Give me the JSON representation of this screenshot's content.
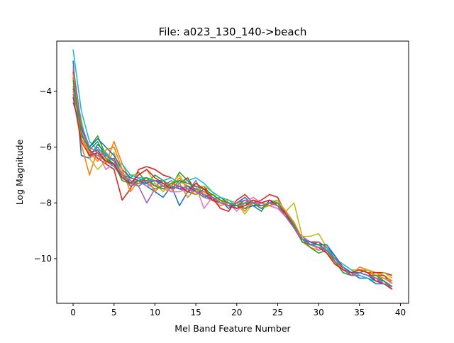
{
  "chart_data": {
    "type": "line",
    "title": "File: a023_130_140->beach",
    "xlabel": "Mel Band Feature Number",
    "ylabel": "Log Magnitude",
    "xlim": [
      -2,
      41
    ],
    "ylim": [
      -11.6,
      -2.2
    ],
    "xticks": [
      0,
      5,
      10,
      15,
      20,
      25,
      30,
      35,
      40
    ],
    "yticks": [
      -10,
      -8,
      -6,
      -4
    ],
    "ytick_labels": [
      "−10",
      "−8",
      "−6",
      "−4"
    ],
    "grid": false,
    "legend": "none",
    "x": [
      0,
      1,
      2,
      3,
      4,
      5,
      6,
      7,
      8,
      9,
      10,
      11,
      12,
      13,
      14,
      15,
      16,
      17,
      18,
      19,
      20,
      21,
      22,
      23,
      24,
      25,
      26,
      27,
      28,
      29,
      30,
      31,
      32,
      33,
      34,
      35,
      36,
      37,
      38,
      39
    ],
    "series": [
      {
        "color": "#1f77b4",
        "values": [
          -2.9,
          -6.3,
          -6.4,
          -5.9,
          -6.2,
          -6.5,
          -6.9,
          -7.3,
          -7.2,
          -7.4,
          -7.6,
          -7.8,
          -7.4,
          -8.1,
          -7.6,
          -7.7,
          -7.5,
          -7.7,
          -7.9,
          -8.2,
          -8.0,
          -7.8,
          -8.1,
          -8.3,
          -7.9,
          -8.0,
          -8.3,
          -8.8,
          -9.3,
          -9.5,
          -9.6,
          -9.6,
          -9.9,
          -10.4,
          -10.5,
          -10.7,
          -10.7,
          -10.9,
          -10.9,
          -11.0
        ]
      },
      {
        "color": "#ff7f0e",
        "values": [
          -3.2,
          -5.9,
          -7.0,
          -6.1,
          -6.6,
          -5.8,
          -6.6,
          -7.2,
          -7.3,
          -7.1,
          -7.2,
          -7.4,
          -7.6,
          -7.3,
          -7.8,
          -7.5,
          -7.4,
          -7.9,
          -8.1,
          -8.0,
          -8.2,
          -8.0,
          -7.9,
          -8.1,
          -8.1,
          -8.2,
          -8.3,
          -8.8,
          -9.4,
          -9.6,
          -9.7,
          -9.6,
          -10.0,
          -10.3,
          -10.6,
          -10.3,
          -10.4,
          -10.5,
          -10.6,
          -10.8
        ]
      },
      {
        "color": "#2ca02c",
        "values": [
          -3.5,
          -5.6,
          -6.0,
          -5.6,
          -6.3,
          -6.5,
          -7.0,
          -7.1,
          -6.9,
          -7.3,
          -7.0,
          -7.2,
          -7.4,
          -6.9,
          -7.2,
          -7.6,
          -7.8,
          -7.7,
          -7.9,
          -8.0,
          -8.1,
          -8.2,
          -8.0,
          -8.2,
          -8.0,
          -7.9,
          -8.4,
          -8.9,
          -9.3,
          -9.6,
          -9.8,
          -9.7,
          -10.1,
          -10.5,
          -10.6,
          -10.5,
          -10.6,
          -10.7,
          -10.8,
          -11.1
        ]
      },
      {
        "color": "#d62728",
        "values": [
          -3.3,
          -5.3,
          -6.1,
          -6.4,
          -6.6,
          -6.8,
          -7.9,
          -7.5,
          -6.8,
          -6.7,
          -6.8,
          -7.0,
          -7.1,
          -7.3,
          -7.1,
          -7.6,
          -7.4,
          -7.8,
          -8.2,
          -8.3,
          -7.9,
          -7.7,
          -8.0,
          -7.9,
          -7.7,
          -7.8,
          -8.4,
          -8.7,
          -9.3,
          -9.4,
          -9.4,
          -9.6,
          -10.0,
          -10.3,
          -10.5,
          -10.4,
          -10.5,
          -10.5,
          -10.5,
          -10.6
        ]
      },
      {
        "color": "#9467bd",
        "values": [
          -3.8,
          -5.5,
          -6.3,
          -6.0,
          -6.4,
          -6.7,
          -7.1,
          -7.3,
          -7.4,
          -8.0,
          -7.5,
          -7.4,
          -7.2,
          -7.5,
          -7.6,
          -7.2,
          -7.8,
          -7.9,
          -8.0,
          -8.1,
          -8.2,
          -8.0,
          -8.1,
          -8.0,
          -7.9,
          -8.1,
          -8.4,
          -8.9,
          -9.4,
          -9.5,
          -9.4,
          -9.8,
          -10.2,
          -10.4,
          -10.6,
          -10.6,
          -10.7,
          -10.8,
          -10.9,
          -11.0
        ]
      },
      {
        "color": "#8c564b",
        "values": [
          -3.9,
          -5.1,
          -6.2,
          -6.1,
          -6.5,
          -6.4,
          -7.0,
          -7.4,
          -7.2,
          -7.2,
          -7.4,
          -7.2,
          -7.5,
          -7.2,
          -7.4,
          -7.5,
          -7.7,
          -7.9,
          -7.8,
          -8.0,
          -8.1,
          -7.9,
          -8.0,
          -8.1,
          -8.0,
          -8.1,
          -8.5,
          -8.8,
          -9.3,
          -9.5,
          -9.5,
          -9.7,
          -10.1,
          -10.3,
          -10.6,
          -10.5,
          -10.4,
          -10.6,
          -10.6,
          -10.9
        ]
      },
      {
        "color": "#e377c2",
        "values": [
          -4.0,
          -5.4,
          -6.4,
          -6.2,
          -6.8,
          -6.6,
          -6.9,
          -7.4,
          -7.1,
          -7.4,
          -7.3,
          -7.5,
          -7.6,
          -7.6,
          -7.5,
          -7.4,
          -8.2,
          -7.8,
          -8.0,
          -8.0,
          -8.3,
          -8.0,
          -7.8,
          -8.0,
          -8.1,
          -8.2,
          -8.5,
          -8.9,
          -9.2,
          -9.4,
          -9.7,
          -9.6,
          -10.1,
          -10.4,
          -10.5,
          -10.4,
          -10.5,
          -10.7,
          -10.7,
          -10.9
        ]
      },
      {
        "color": "#7f7f7f",
        "values": [
          -4.1,
          -5.2,
          -6.2,
          -6.3,
          -6.5,
          -6.7,
          -7.0,
          -7.4,
          -7.3,
          -7.3,
          -7.5,
          -7.4,
          -7.3,
          -7.4,
          -7.6,
          -7.5,
          -7.6,
          -7.8,
          -7.9,
          -8.0,
          -8.2,
          -8.1,
          -8.0,
          -8.1,
          -8.0,
          -8.1,
          -8.4,
          -8.9,
          -9.2,
          -9.5,
          -9.6,
          -9.7,
          -10.0,
          -10.3,
          -10.5,
          -10.5,
          -10.6,
          -10.7,
          -10.8,
          -11.0
        ]
      },
      {
        "color": "#bcbd22",
        "values": [
          -3.7,
          -5.0,
          -6.4,
          -6.8,
          -6.5,
          -6.2,
          -7.0,
          -7.0,
          -7.0,
          -6.8,
          -7.3,
          -7.6,
          -7.3,
          -7.0,
          -7.5,
          -7.6,
          -7.4,
          -7.6,
          -8.0,
          -7.9,
          -8.0,
          -8.4,
          -8.0,
          -8.2,
          -8.1,
          -7.9,
          -8.3,
          -8.0,
          -9.2,
          -9.2,
          -9.1,
          -9.6,
          -10.0,
          -10.2,
          -10.4,
          -10.4,
          -10.4,
          -10.6,
          -10.5,
          -10.7
        ]
      },
      {
        "color": "#17becf",
        "values": [
          -2.5,
          -4.7,
          -5.8,
          -6.1,
          -6.2,
          -6.7,
          -6.6,
          -7.0,
          -7.1,
          -7.1,
          -7.2,
          -7.2,
          -7.1,
          -7.3,
          -7.2,
          -7.1,
          -7.3,
          -7.6,
          -7.8,
          -7.9,
          -8.1,
          -8.0,
          -7.9,
          -8.0,
          -8.1,
          -8.0,
          -8.3,
          -8.8,
          -9.3,
          -9.5,
          -9.6,
          -9.6,
          -10.0,
          -10.2,
          -10.4,
          -10.6,
          -10.7,
          -10.8,
          -10.9,
          -11.0
        ]
      },
      {
        "color": "#1f77b4",
        "values": [
          -4.4,
          -5.3,
          -6.0,
          -5.7,
          -6.0,
          -6.3,
          -6.8,
          -7.1,
          -7.2,
          -7.3,
          -7.2,
          -7.3,
          -7.4,
          -7.5,
          -7.4,
          -7.6,
          -7.7,
          -7.8,
          -8.0,
          -8.1,
          -8.1,
          -8.2,
          -8.1,
          -8.1,
          -8.0,
          -8.1,
          -8.4,
          -8.8,
          -9.3,
          -9.4,
          -9.5,
          -9.5,
          -9.9,
          -10.3,
          -10.5,
          -10.5,
          -10.6,
          -10.8,
          -10.8,
          -11.0
        ]
      },
      {
        "color": "#ff7f0e",
        "values": [
          -3.4,
          -5.7,
          -6.2,
          -6.5,
          -6.1,
          -6.0,
          -6.8,
          -7.6,
          -7.2,
          -7.1,
          -7.6,
          -7.3,
          -7.4,
          -7.1,
          -7.5,
          -7.7,
          -7.6,
          -7.7,
          -7.9,
          -8.1,
          -8.0,
          -8.3,
          -7.9,
          -8.0,
          -8.1,
          -8.0,
          -8.3,
          -8.7,
          -9.3,
          -9.5,
          -9.6,
          -9.8,
          -10.1,
          -10.4,
          -10.5,
          -10.4,
          -10.5,
          -10.6,
          -10.7,
          -10.8
        ]
      },
      {
        "color": "#2ca02c",
        "values": [
          -3.6,
          -5.5,
          -6.1,
          -5.8,
          -6.4,
          -6.6,
          -7.2,
          -7.3,
          -7.2,
          -7.1,
          -7.4,
          -7.5,
          -7.3,
          -7.2,
          -7.3,
          -7.4,
          -7.5,
          -7.7,
          -7.9,
          -8.0,
          -8.1,
          -8.0,
          -8.0,
          -8.2,
          -8.0,
          -8.0,
          -8.4,
          -8.8,
          -9.4,
          -9.5,
          -9.5,
          -9.7,
          -10.1,
          -10.5,
          -10.6,
          -10.5,
          -10.6,
          -10.6,
          -10.8,
          -11.0
        ]
      },
      {
        "color": "#d62728",
        "values": [
          -4.2,
          -5.8,
          -6.3,
          -6.2,
          -6.5,
          -6.6,
          -7.1,
          -7.3,
          -7.0,
          -6.8,
          -7.1,
          -7.3,
          -7.5,
          -7.4,
          -7.6,
          -7.3,
          -7.5,
          -7.9,
          -8.0,
          -8.1,
          -8.2,
          -8.1,
          -7.9,
          -8.0,
          -7.9,
          -8.1,
          -8.4,
          -8.9,
          -9.3,
          -9.5,
          -9.6,
          -9.8,
          -10.2,
          -10.4,
          -10.5,
          -10.4,
          -10.5,
          -10.8,
          -10.9,
          -11.1
        ]
      },
      {
        "color": "#9467bd",
        "values": [
          -3.1,
          -5.2,
          -6.0,
          -6.2,
          -6.3,
          -6.5,
          -7.0,
          -7.2,
          -7.4,
          -7.2,
          -7.2,
          -7.4,
          -7.5,
          -7.4,
          -7.5,
          -7.6,
          -7.7,
          -7.8,
          -8.0,
          -8.1,
          -8.0,
          -7.9,
          -8.0,
          -8.1,
          -8.0,
          -8.1,
          -8.5,
          -8.9,
          -9.3,
          -9.5,
          -9.6,
          -9.7,
          -10.0,
          -10.3,
          -10.6,
          -10.5,
          -10.6,
          -10.7,
          -10.9,
          -11.0
        ]
      }
    ]
  }
}
